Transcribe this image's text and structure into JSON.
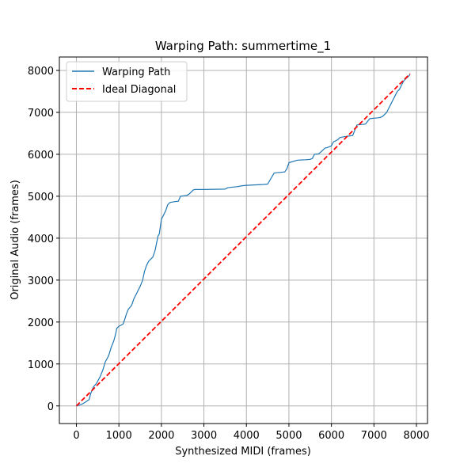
{
  "chart_data": {
    "type": "line",
    "title": "Warping Path: summertime_1",
    "xlabel": "Synthesized MIDI (frames)",
    "ylabel": "Original Audio (frames)",
    "xlim": [
      -400,
      8260
    ],
    "ylim": [
      -420,
      8320
    ],
    "xticks": [
      0,
      1000,
      2000,
      3000,
      4000,
      5000,
      6000,
      7000,
      8000
    ],
    "yticks": [
      0,
      1000,
      2000,
      3000,
      4000,
      5000,
      6000,
      7000,
      8000
    ],
    "grid": true,
    "legend_position": "upper-left",
    "colors": {
      "warping": "#1f77b4",
      "ideal": "#ff0000",
      "grid": "#b0b0b0"
    },
    "series": [
      {
        "name": "Warping Path",
        "style": "solid",
        "x": [
          0,
          150,
          300,
          340,
          400,
          480,
          560,
          620,
          680,
          760,
          820,
          880,
          920,
          950,
          1000,
          1100,
          1150,
          1180,
          1220,
          1300,
          1350,
          1400,
          1450,
          1500,
          1560,
          1600,
          1650,
          1700,
          1750,
          1800,
          1850,
          1900,
          1920,
          1950,
          2000,
          2050,
          2100,
          2150,
          2200,
          2300,
          2400,
          2450,
          2600,
          2650,
          2700,
          2750,
          2800,
          3000,
          3500,
          3550,
          3600,
          3800,
          3900,
          4000,
          4400,
          4500,
          4650,
          4700,
          4900,
          4950,
          5000,
          5200,
          5400,
          5500,
          5550,
          5600,
          5700,
          5800,
          5850,
          5900,
          6000,
          6050,
          6100,
          6150,
          6200,
          6300,
          6500,
          6600,
          6700,
          6800,
          6900,
          7000,
          7100,
          7150,
          7200,
          7250,
          7300,
          7350,
          7400,
          7450,
          7500,
          7550,
          7600,
          7650,
          7700,
          7750,
          7800,
          7850
        ],
        "y": [
          0,
          50,
          150,
          300,
          450,
          550,
          700,
          850,
          1050,
          1200,
          1400,
          1550,
          1700,
          1850,
          1900,
          1950,
          2100,
          2200,
          2300,
          2400,
          2550,
          2650,
          2750,
          2850,
          3000,
          3200,
          3350,
          3450,
          3500,
          3550,
          3700,
          3950,
          4050,
          4100,
          4450,
          4550,
          4650,
          4800,
          4850,
          4870,
          4880,
          5000,
          5020,
          5050,
          5100,
          5150,
          5160,
          5160,
          5170,
          5200,
          5210,
          5230,
          5250,
          5260,
          5280,
          5290,
          5550,
          5560,
          5580,
          5650,
          5800,
          5860,
          5870,
          5880,
          5900,
          6000,
          6010,
          6100,
          6150,
          6160,
          6200,
          6300,
          6320,
          6350,
          6400,
          6420,
          6450,
          6700,
          6710,
          6720,
          6850,
          6860,
          6870,
          6880,
          6900,
          6950,
          7000,
          7100,
          7200,
          7300,
          7400,
          7500,
          7550,
          7650,
          7750,
          7800,
          7850,
          7900
        ]
      },
      {
        "name": "Ideal Diagonal",
        "style": "dashed",
        "x": [
          0,
          7850
        ],
        "y": [
          0,
          7920
        ]
      }
    ]
  }
}
